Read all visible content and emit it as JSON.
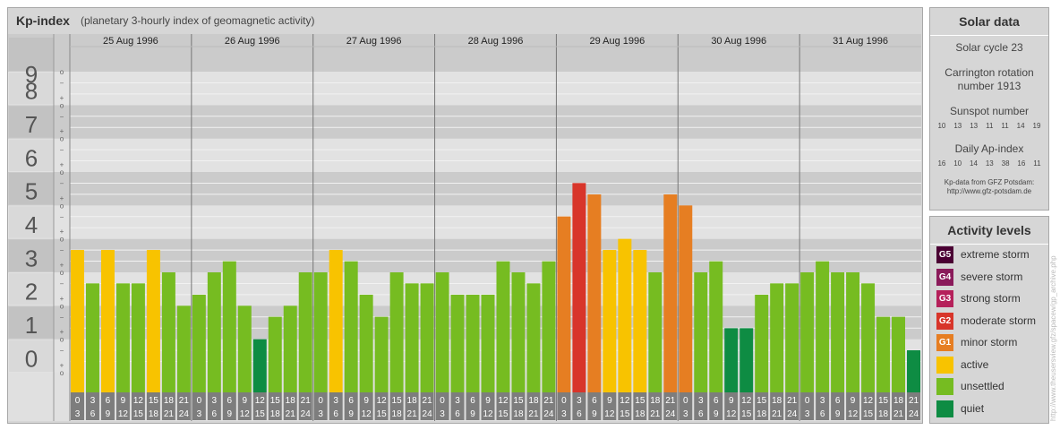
{
  "header": {
    "title": "Kp-index",
    "subtitle": "(planetary 3-hourly index of geomagnetic activity)"
  },
  "solar": {
    "title": "Solar data",
    "cycle": "Solar cycle 23",
    "carrington_line1": "Carrington rotation",
    "carrington_line2": "number 1913",
    "sunspot_label": "Sunspot number",
    "sunspot_values": [
      "10",
      "13",
      "13",
      "11",
      "11",
      "14",
      "19"
    ],
    "ap_label": "Daily Ap-index",
    "ap_values": [
      "16",
      "10",
      "14",
      "13",
      "38",
      "16",
      "11"
    ],
    "source_line1": "Kp-data from  GFZ Potsdam:",
    "source_line2": "http://www.gfz-potsdam.de"
  },
  "activity": {
    "title": "Activity levels",
    "levels": [
      {
        "badge": "G5",
        "label": "extreme storm",
        "color": "#4a0033"
      },
      {
        "badge": "G4",
        "label": "severe storm",
        "color": "#8a1a5a"
      },
      {
        "badge": "G3",
        "label": "strong storm",
        "color": "#b5205a"
      },
      {
        "badge": "G2",
        "label": "moderate storm",
        "color": "#d8352a"
      },
      {
        "badge": "G1",
        "label": "minor storm",
        "color": "#e67e22"
      },
      {
        "badge": "",
        "label": "active",
        "color": "#f8c300"
      },
      {
        "badge": "",
        "label": "unsettled",
        "color": "#76bc21"
      },
      {
        "badge": "",
        "label": "quiet",
        "color": "#0e8c43"
      }
    ]
  },
  "credit": "http://www.theusersview.gfz/spacew/gp_archive.php",
  "chart_data": {
    "type": "bar",
    "title": "Kp-index",
    "ylim": [
      0,
      9
    ],
    "y_ticks": [
      "0",
      "1",
      "2",
      "3",
      "4",
      "5",
      "6",
      "7",
      "8",
      "9"
    ],
    "minor_tick_labels": [
      "o",
      "+",
      "−"
    ],
    "days": [
      "25 Aug 1996",
      "26 Aug 1996",
      "27 Aug 1996",
      "28 Aug 1996",
      "29 Aug 1996",
      "30 Aug 1996",
      "31 Aug 1996"
    ],
    "interval_start": [
      "0",
      "3",
      "6",
      "9",
      "12",
      "15",
      "18",
      "21"
    ],
    "interval_end": [
      "3",
      "6",
      "9",
      "12",
      "15",
      "18",
      "21",
      "24"
    ],
    "thresholds": {
      "minor": 5,
      "moderate": 5.67,
      "active": 3.67,
      "unsettled": 1.67
    },
    "values": [
      3.67,
      2.67,
      3.67,
      2.67,
      2.67,
      3.67,
      3.0,
      2.0,
      2.33,
      3.0,
      3.33,
      2.0,
      1.0,
      1.67,
      2.0,
      3.0,
      3.0,
      3.67,
      3.33,
      2.33,
      1.67,
      3.0,
      2.67,
      2.67,
      3.0,
      2.33,
      2.33,
      2.33,
      3.33,
      3.0,
      2.67,
      3.33,
      4.67,
      5.67,
      5.33,
      3.67,
      4.0,
      3.67,
      3.0,
      5.33,
      5.0,
      3.0,
      3.33,
      1.33,
      1.33,
      2.33,
      2.67,
      2.67,
      3.0,
      3.33,
      3.0,
      3.0,
      2.67,
      1.67,
      1.67,
      0.67
    ]
  }
}
